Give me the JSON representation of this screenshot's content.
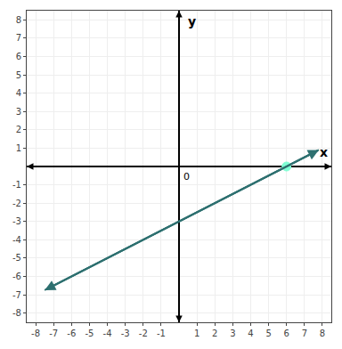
{
  "chart_data": {
    "type": "line",
    "xlabel": "x",
    "ylabel": "y",
    "xlim": [
      -8.5,
      8.5
    ],
    "ylim": [
      -8.5,
      8.5
    ],
    "xticks": [
      -8,
      -7,
      -6,
      -5,
      -4,
      -3,
      -2,
      -1,
      1,
      2,
      3,
      4,
      5,
      6,
      7,
      8
    ],
    "yticks": [
      -8,
      -7,
      -6,
      -5,
      -4,
      -3,
      -2,
      -1,
      1,
      2,
      3,
      4,
      5,
      6,
      7,
      8
    ],
    "grid": true,
    "annotations": [
      {
        "text": "0"
      }
    ],
    "series": [
      {
        "type": "line",
        "color": "#2e7070",
        "x": [
          -7.5,
          7.8
        ],
        "values": [
          -6.75,
          0.9
        ]
      },
      {
        "type": "scatter",
        "color": "#7fffd4",
        "x": [
          6
        ],
        "values": [
          0
        ]
      }
    ]
  }
}
